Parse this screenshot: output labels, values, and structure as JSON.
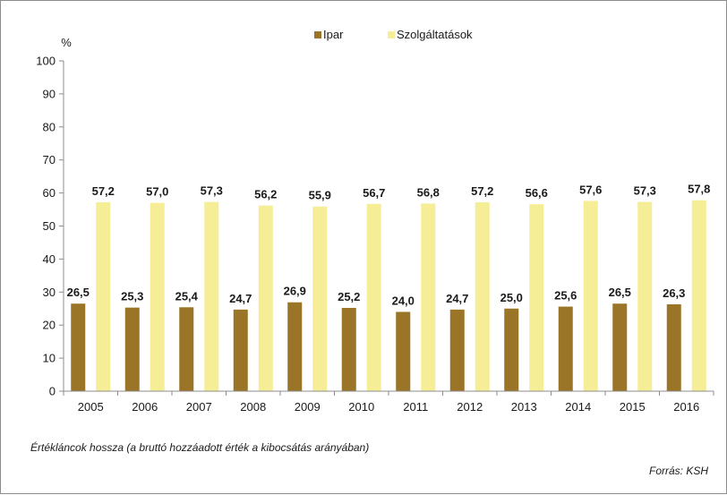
{
  "chart_data": {
    "type": "bar",
    "title": "",
    "xlabel": "",
    "ylabel": "%",
    "ylim": [
      0,
      100
    ],
    "yticks": [
      0,
      10,
      20,
      30,
      40,
      50,
      60,
      70,
      80,
      90,
      100
    ],
    "grid": false,
    "legend_position": "top-center",
    "categories": [
      "2005",
      "2006",
      "2007",
      "2008",
      "2009",
      "2010",
      "2011",
      "2012",
      "2013",
      "2014",
      "2015",
      "2016"
    ],
    "series": [
      {
        "name": "Ipar",
        "color": "#9a7427",
        "values": [
          26.5,
          25.3,
          25.4,
          24.7,
          26.9,
          25.2,
          24.0,
          24.7,
          25.0,
          25.6,
          26.5,
          26.3
        ],
        "labels": [
          "26,5",
          "25,3",
          "25,4",
          "24,7",
          "26,9",
          "25,2",
          "24,0",
          "24,7",
          "25,0",
          "25,6",
          "26,5",
          "26,3"
        ]
      },
      {
        "name": "Szolgáltatások",
        "color": "#f5ee96",
        "values": [
          57.2,
          57.0,
          57.3,
          56.2,
          55.9,
          56.7,
          56.8,
          57.2,
          56.6,
          57.6,
          57.3,
          57.8
        ],
        "labels": [
          "57,2",
          "57,0",
          "57,3",
          "56,2",
          "55,9",
          "56,7",
          "56,8",
          "57,2",
          "56,6",
          "57,6",
          "57,3",
          "57,8"
        ]
      }
    ]
  },
  "caption": "Értékláncok hossza (a bruttó hozzáadott érték a kibocsátás arányában)",
  "source": "Forrás: KSH"
}
